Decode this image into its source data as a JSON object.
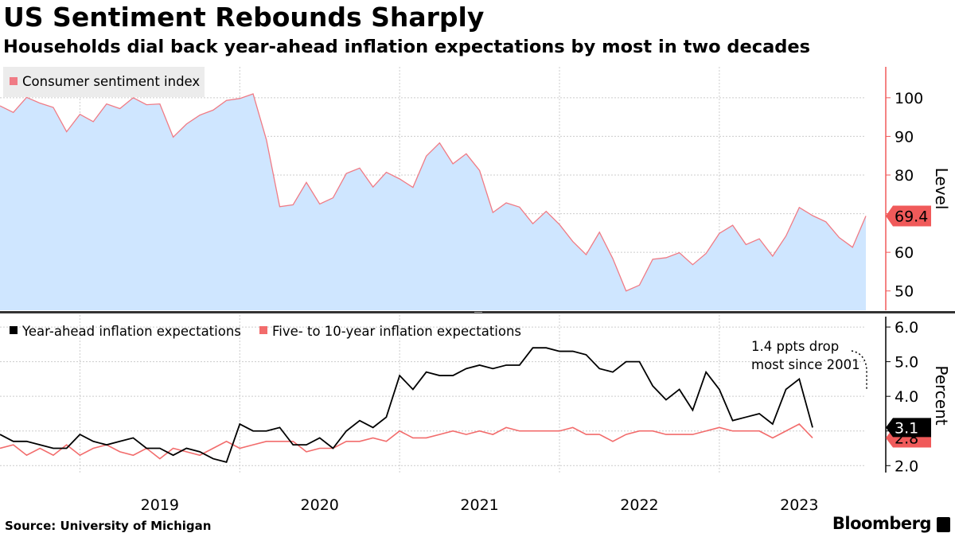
{
  "header": {
    "title": "US Sentiment Rebounds Sharply",
    "subtitle": "Households dial back year-ahead inflation expectations by most in two decades"
  },
  "footer": {
    "source": "Source: University of Michigan",
    "brand": "Bloomberg"
  },
  "colors": {
    "sentiment_fill": "#cfe6ff",
    "sentiment_line": "#f07b85",
    "five_ten_line": "#f26c6c",
    "year_ahead_line": "#000000",
    "axis_accent": "#f05a5a",
    "grid": "#cccccc"
  },
  "chart_data": [
    {
      "type": "area",
      "legend": "Consumer sentiment index",
      "axis_title": "Level",
      "ylim": [
        45,
        108
      ],
      "yticks": [
        50,
        60,
        70,
        80,
        90,
        100
      ],
      "last_value_label": "69.4",
      "x_start": "2018-07",
      "x_ticks": [
        "2019",
        "2020",
        "2021",
        "2022",
        "2023"
      ],
      "grid": true,
      "values": [
        97.9,
        96.2,
        100.1,
        98.6,
        97.5,
        91.2,
        95.7,
        93.8,
        98.4,
        97.2,
        100.0,
        98.2,
        98.4,
        89.8,
        93.2,
        95.5,
        96.8,
        99.3,
        99.8,
        101.0,
        89.1,
        71.8,
        72.3,
        78.1,
        72.5,
        74.1,
        80.4,
        81.8,
        76.9,
        80.7,
        79.0,
        76.8,
        84.9,
        88.3,
        82.9,
        85.5,
        81.2,
        70.3,
        72.8,
        71.7,
        67.4,
        70.6,
        67.2,
        62.8,
        59.4,
        65.2,
        58.4,
        50.0,
        51.5,
        58.2,
        58.6,
        59.9,
        56.8,
        59.7,
        64.9,
        67.0,
        62.0,
        63.5,
        59.0,
        64.2,
        71.6,
        69.5,
        67.9,
        63.8,
        61.3,
        69.4
      ]
    },
    {
      "type": "line",
      "axis_title": "Percent",
      "ylim": [
        1.8,
        6.3
      ],
      "yticks": [
        "2.0",
        "3.0",
        "4.0",
        "5.0",
        "6.0"
      ],
      "x_start": "2018-07",
      "annotation": [
        "1.4 ppts drop",
        "most since 2001"
      ],
      "series": [
        {
          "name": "Year-ahead inflation expectations",
          "last_value_label": "3.1",
          "values": [
            2.9,
            2.7,
            2.7,
            2.6,
            2.5,
            2.5,
            2.9,
            2.7,
            2.6,
            2.7,
            2.8,
            2.5,
            2.5,
            2.3,
            2.5,
            2.4,
            2.2,
            2.1,
            3.2,
            3.0,
            3.0,
            3.1,
            2.6,
            2.6,
            2.8,
            2.5,
            3.0,
            3.3,
            3.1,
            3.4,
            4.6,
            4.2,
            4.7,
            4.6,
            4.6,
            4.8,
            4.9,
            4.8,
            4.9,
            4.9,
            5.4,
            5.4,
            5.3,
            5.3,
            5.2,
            4.8,
            4.7,
            5.0,
            5.0,
            4.3,
            3.9,
            4.2,
            3.6,
            4.7,
            4.2,
            3.3,
            3.4,
            3.5,
            3.2,
            4.2,
            4.5,
            3.1
          ]
        },
        {
          "name": "Five- to 10-year inflation expectations",
          "last_value_label": "2.8",
          "values": [
            2.5,
            2.6,
            2.3,
            2.5,
            2.3,
            2.6,
            2.3,
            2.5,
            2.6,
            2.4,
            2.3,
            2.5,
            2.2,
            2.5,
            2.4,
            2.3,
            2.5,
            2.7,
            2.5,
            2.6,
            2.7,
            2.7,
            2.7,
            2.4,
            2.5,
            2.5,
            2.7,
            2.7,
            2.8,
            2.7,
            3.0,
            2.8,
            2.8,
            2.9,
            3.0,
            2.9,
            3.0,
            2.9,
            3.1,
            3.0,
            3.0,
            3.0,
            3.0,
            3.1,
            2.9,
            2.9,
            2.7,
            2.9,
            3.0,
            3.0,
            2.9,
            2.9,
            2.9,
            3.0,
            3.1,
            3.0,
            3.0,
            3.0,
            2.8,
            3.0,
            3.2,
            2.8
          ]
        }
      ]
    }
  ]
}
